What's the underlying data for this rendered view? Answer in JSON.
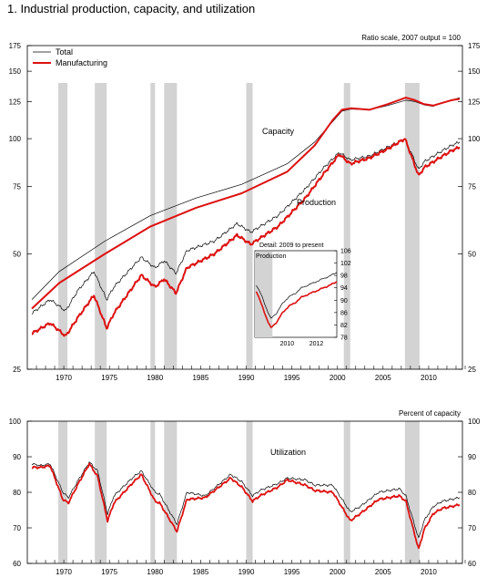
{
  "figure": {
    "title": "1.  Industrial production, capacity, and utilization"
  },
  "colors": {
    "total": "#000000",
    "manufacturing": "#dd1111",
    "recession": "#d3d3d3"
  },
  "recessions": [
    [
      1969.9,
      1970.9
    ],
    [
      1973.9,
      1975.2
    ],
    [
      1980.0,
      1980.5
    ],
    [
      1981.5,
      1982.9
    ],
    [
      1990.5,
      1991.2
    ],
    [
      2001.2,
      2001.9
    ],
    [
      2007.9,
      2009.5
    ]
  ],
  "chart_data": [
    {
      "type": "line",
      "name": "capacity-production",
      "scale": "log",
      "scale_note": "Ratio scale, 2007 output = 100",
      "xlim": [
        1966.5,
        2014.2
      ],
      "ylim": [
        25,
        175
      ],
      "y_ticks": [
        25,
        50,
        75,
        100,
        125,
        150,
        175
      ],
      "x_ticks": [
        1970,
        1975,
        1980,
        1985,
        1990,
        1995,
        2000,
        2005,
        2010
      ],
      "legend": {
        "placement": "top-left",
        "entries": [
          "Total",
          "Manufacturing"
        ]
      },
      "annotations": [
        "Capacity",
        "Production"
      ],
      "series": [
        {
          "name": "Total",
          "group": "capacity",
          "x": [
            1967,
            1970,
            1975,
            1980,
            1985,
            1990,
            1995,
            1998,
            2000,
            2001,
            2002,
            2004,
            2006,
            2008,
            2009,
            2010,
            2011,
            2012,
            2013,
            2013.9
          ],
          "y": [
            38,
            45,
            54,
            63,
            70,
            76,
            86,
            98,
            111,
            118,
            119.5,
            119,
            122,
            126,
            125,
            122.5,
            121.5,
            124,
            126,
            128
          ]
        },
        {
          "name": "Manufacturing",
          "group": "capacity",
          "x": [
            1967,
            1970,
            1975,
            1980,
            1985,
            1990,
            1995,
            1998,
            2000,
            2001,
            2002,
            2004,
            2006,
            2008,
            2009,
            2010,
            2011,
            2012,
            2013,
            2013.9
          ],
          "y": [
            36,
            42,
            50,
            59,
            66,
            72,
            82,
            96,
            112,
            119,
            120,
            119,
            123,
            128,
            126,
            123,
            122,
            124,
            126,
            127
          ]
        },
        {
          "name": "Total",
          "group": "production",
          "x": [
            1967,
            1969,
            1970.7,
            1972,
            1973.8,
            1975.2,
            1976,
            1979,
            1980.5,
            1981.5,
            1982.8,
            1984,
            1987,
            1989.5,
            1991,
            1994,
            1997,
            1999,
            2000.7,
            2001.9,
            2004,
            2006,
            2007.9,
            2009.4,
            2010,
            2011,
            2012,
            2013,
            2013.9
          ],
          "y": [
            35,
            38,
            35.5,
            40,
            45,
            38,
            41,
            49,
            46,
            48,
            44.5,
            51,
            54,
            60,
            57,
            63,
            74,
            84,
            92,
            88,
            90,
            95,
            100,
            83,
            87,
            90,
            93,
            96,
            98
          ]
        },
        {
          "name": "Manufacturing",
          "group": "production",
          "x": [
            1967,
            1969,
            1970.7,
            1972,
            1973.8,
            1975.2,
            1976,
            1979,
            1980.5,
            1981.5,
            1982.8,
            1984,
            1987,
            1989.5,
            1991,
            1994,
            1997,
            1999,
            2000.7,
            2001.9,
            2004,
            2006,
            2007.9,
            2009.4,
            2010,
            2011,
            2012,
            2013,
            2013.9
          ],
          "y": [
            31,
            33,
            30.5,
            34,
            39,
            32,
            35,
            44,
            41,
            43,
            39.5,
            46,
            50,
            56,
            53,
            59,
            70,
            81,
            91,
            86,
            89,
            94,
            100,
            80,
            84,
            87,
            90,
            93,
            95
          ]
        }
      ]
    },
    {
      "type": "line",
      "name": "detail-production",
      "title": "Detail: 2009 to present",
      "ylabel": "Production",
      "xlim": [
        2008.3,
        2013.9
      ],
      "ylim": [
        78,
        106
      ],
      "y_ticks": [
        78,
        82,
        86,
        90,
        94,
        98,
        102,
        106
      ],
      "x_ticks": [
        2010,
        2012
      ],
      "series": [
        {
          "name": "Total",
          "x": [
            2008.4,
            2008.8,
            2009.2,
            2009.4,
            2009.8,
            2010.2,
            2010.6,
            2011,
            2011.5,
            2012,
            2012.5,
            2013,
            2013.5,
            2013.9
          ],
          "y": [
            95,
            91,
            86,
            84,
            86,
            89,
            91,
            92,
            94,
            95,
            96,
            97,
            98,
            99
          ]
        },
        {
          "name": "Manufacturing",
          "x": [
            2008.4,
            2008.8,
            2009.2,
            2009.4,
            2009.8,
            2010.2,
            2010.6,
            2011,
            2011.5,
            2012,
            2012.5,
            2013,
            2013.5,
            2013.9
          ],
          "y": [
            93,
            88,
            83,
            81,
            83,
            86,
            88,
            89,
            91,
            92,
            93,
            94,
            95,
            96
          ]
        }
      ]
    },
    {
      "type": "line",
      "name": "utilization",
      "ylabel": "Percent of capacity",
      "annotations": [
        "Utilization"
      ],
      "xlim": [
        1966.5,
        2014.2
      ],
      "ylim": [
        60,
        100
      ],
      "y_ticks": [
        60,
        70,
        80,
        90,
        100
      ],
      "x_ticks": [
        1970,
        1975,
        1980,
        1985,
        1990,
        1995,
        2000,
        2005,
        2010
      ],
      "series": [
        {
          "name": "Total",
          "x": [
            1967,
            1968,
            1969,
            1970.4,
            1971,
            1972,
            1973.3,
            1974.2,
            1975.3,
            1976,
            1978,
            1979,
            1980.5,
            1981,
            1982.9,
            1984,
            1986,
            1988.8,
            1990,
            1991.2,
            1992,
            1994,
            1995,
            1997,
            1998,
            2000,
            2001.9,
            2003,
            2005,
            2007.3,
            2008,
            2009.4,
            2010,
            2011,
            2012,
            2013,
            2013.9
          ],
          "y": [
            88,
            87.5,
            88,
            80,
            78.5,
            83,
            88.5,
            86,
            74,
            79,
            84,
            86,
            80,
            79.5,
            71,
            80,
            79,
            85,
            83,
            79,
            80.5,
            82.5,
            84,
            83.5,
            82,
            82,
            74.5,
            76,
            80,
            81,
            79,
            67,
            72,
            76,
            77.5,
            78,
            78.5
          ]
        },
        {
          "name": "Manufacturing",
          "x": [
            1967,
            1968,
            1969,
            1970.4,
            1971,
            1972,
            1973.3,
            1974.2,
            1975.3,
            1976,
            1978,
            1979,
            1980.5,
            1981,
            1982.9,
            1984,
            1986,
            1988.8,
            1990,
            1991.2,
            1992,
            1994,
            1995,
            1997,
            1998,
            2000,
            2001.9,
            2003,
            2005,
            2007.3,
            2008,
            2009.4,
            2010,
            2011,
            2012,
            2013,
            2013.9
          ],
          "y": [
            87,
            87,
            87.5,
            78,
            77,
            82,
            88,
            84.5,
            72,
            77,
            82.5,
            85,
            77.5,
            77,
            69,
            78,
            78.5,
            84,
            81.5,
            77.5,
            79,
            81.5,
            83.5,
            82,
            80.5,
            80,
            72,
            74,
            78,
            79,
            77.5,
            64,
            69.5,
            74,
            75.5,
            76,
            76.5
          ]
        }
      ]
    }
  ]
}
